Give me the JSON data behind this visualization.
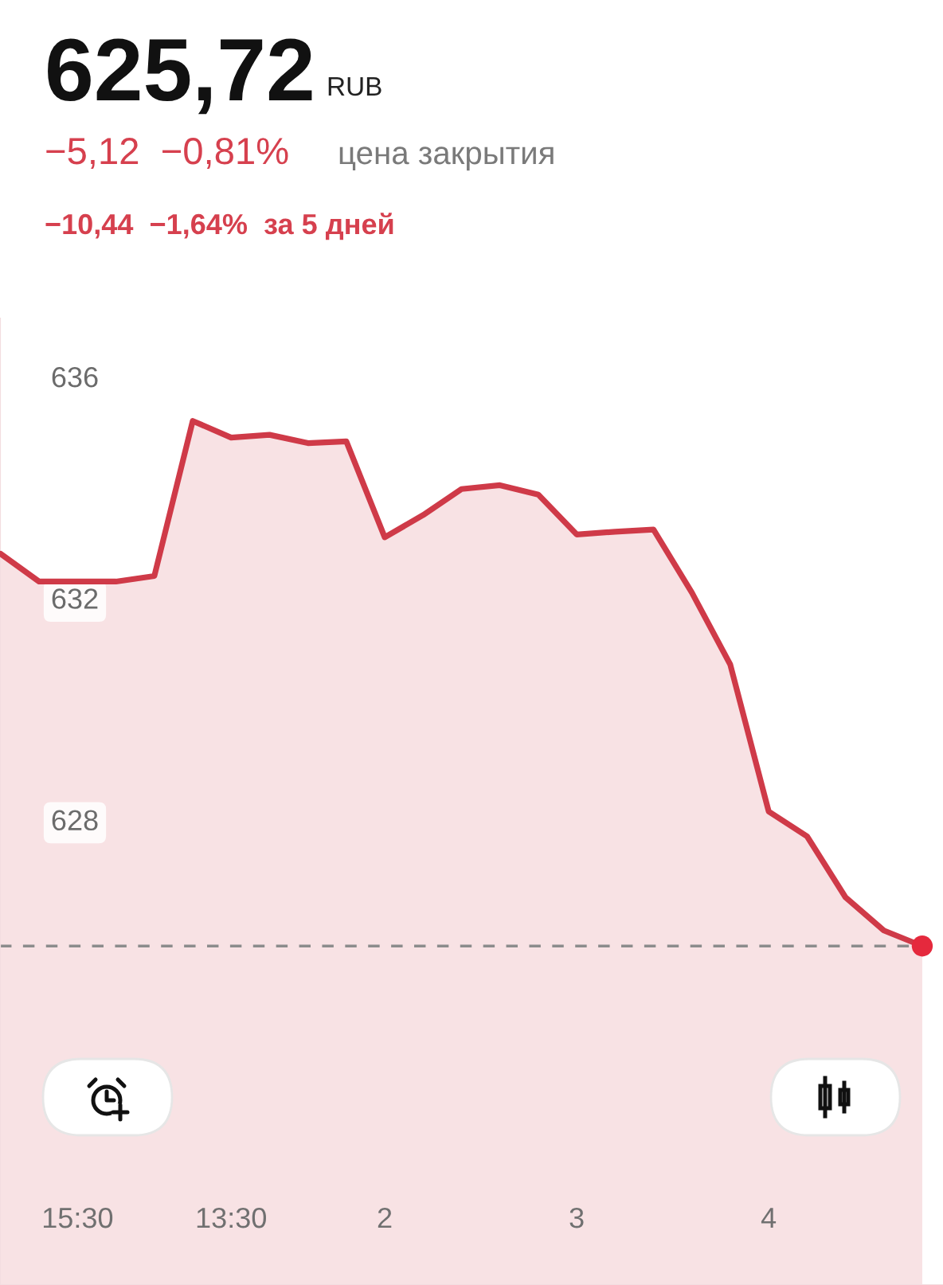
{
  "chart_data": {
    "type": "area",
    "title": "625,72",
    "subtitle": "−5,12  −0,81%",
    "annotations": [
      "RUB",
      "цена закрытия",
      "−10,44  −1,64%  за 5 дней"
    ],
    "categories": [
      null,
      null,
      "15:30",
      null,
      null,
      null,
      "13:30",
      null,
      null,
      null,
      "2",
      null,
      null,
      null,
      null,
      "3",
      null,
      null,
      null,
      null,
      "4",
      null,
      null,
      null,
      null
    ],
    "series": [
      {
        "color": "#cf3a48",
        "values": [
          632.8,
          632.3,
          632.3,
          632.3,
          632.4,
          635.2,
          634.9,
          634.95,
          634.8,
          634.83,
          633.1,
          633.5,
          633.97,
          634.04,
          633.87,
          633.15,
          633.2,
          633.24,
          632.1,
          630.8,
          628.15,
          627.7,
          626.6,
          626.0,
          625.72
        ]
      },
      {
        "type": "scatter",
        "color": "#e5293d",
        "marker": "circle",
        "values": [
          null,
          null,
          null,
          null,
          null,
          null,
          null,
          null,
          null,
          null,
          null,
          null,
          null,
          null,
          null,
          null,
          null,
          null,
          null,
          null,
          null,
          null,
          null,
          null,
          625.72
        ]
      }
    ],
    "ylim": [
      619.6,
      637.05
    ],
    "yticks": [
      628,
      632,
      636
    ],
    "ref_lines": [
      {
        "axis": "y",
        "value": 625.72,
        "color": "#8c8c8c",
        "line_style": "dashed"
      }
    ]
  }
}
